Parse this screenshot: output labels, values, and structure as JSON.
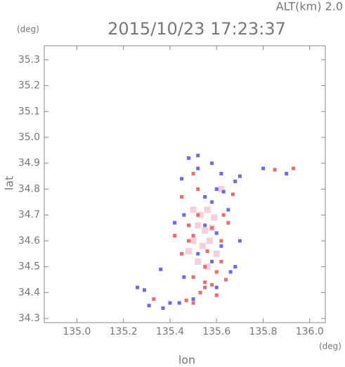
{
  "chart_data": {
    "type": "scatter",
    "altitude_label": "ALT(km) 2.0",
    "title": "2015/10/23 17:23:37",
    "y_unit": "(deg)",
    "x_unit": "(deg)",
    "xlabel": "lon",
    "ylabel": "lat",
    "xlim": [
      134.86,
      136.067
    ],
    "ylim": [
      34.284,
      35.354
    ],
    "xticks": [
      {
        "value": 135,
        "label": "135.0"
      },
      135.2,
      135.4,
      135.6,
      135.8,
      {
        "value": 136,
        "label": "136.0"
      }
    ],
    "yticks": [
      34.3,
      34.4,
      34.5,
      34.6,
      34.7,
      34.8,
      34.9,
      {
        "value": 35,
        "label": "35.0"
      },
      35.1,
      35.2,
      35.3
    ],
    "grid": false,
    "series": [
      {
        "color": "#f5d0dc",
        "x": [
          135.5,
          135.53,
          135.56,
          135.59,
          135.52,
          135.55,
          135.58,
          135.5,
          135.54,
          135.57,
          135.6,
          135.52,
          135.56,
          135.62,
          135.48
        ],
        "values": [
          34.72,
          34.7,
          34.72,
          34.69,
          34.66,
          34.64,
          34.65,
          34.6,
          34.58,
          34.6,
          34.55,
          34.52,
          34.5,
          34.8,
          34.56
        ]
      },
      {
        "color": "#f06a6a",
        "x": [
          135.85,
          135.93,
          135.33,
          135.47,
          135.5,
          135.55,
          135.58,
          135.5,
          135.6,
          135.62,
          135.55,
          135.45,
          135.48,
          135.5,
          135.58,
          135.52,
          135.48,
          135.62,
          135.65,
          135.5,
          135.55,
          135.53,
          135.6,
          135.64,
          135.42,
          135.56,
          135.63,
          135.45,
          135.52,
          135.67
        ],
        "values": [
          34.875,
          34.88,
          34.375,
          34.37,
          34.36,
          34.42,
          34.43,
          34.46,
          34.48,
          34.52,
          34.5,
          34.55,
          34.6,
          34.62,
          34.65,
          34.7,
          34.66,
          34.6,
          34.67,
          34.86,
          34.44,
          34.4,
          34.39,
          34.45,
          34.62,
          34.56,
          34.7,
          34.77,
          34.8,
          34.78
        ]
      },
      {
        "color": "#6a6af0",
        "x": [
          135.26,
          135.29,
          135.31,
          135.37,
          135.4,
          135.44,
          135.5,
          135.6,
          135.66,
          135.68,
          135.58,
          135.52,
          135.62,
          135.6,
          135.55,
          135.46,
          135.42,
          135.65,
          135.7,
          135.58,
          135.6,
          135.68,
          135.7,
          135.62,
          135.58,
          135.48,
          135.52,
          135.45,
          135.52,
          135.8,
          135.9,
          135.36,
          135.46,
          135.63,
          135.55
        ],
        "values": [
          34.42,
          34.41,
          34.35,
          34.34,
          34.36,
          34.36,
          34.375,
          34.42,
          34.48,
          34.5,
          34.52,
          34.55,
          34.58,
          34.63,
          34.66,
          34.7,
          34.67,
          34.72,
          34.6,
          34.75,
          34.8,
          34.83,
          34.85,
          34.86,
          34.9,
          34.92,
          34.93,
          34.84,
          34.88,
          34.88,
          34.86,
          34.49,
          34.46,
          34.79,
          34.77
        ]
      }
    ]
  }
}
